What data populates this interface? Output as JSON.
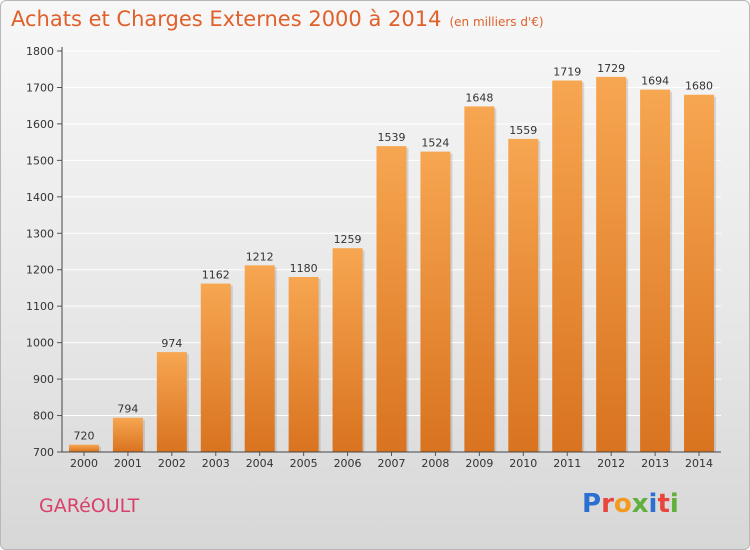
{
  "header": {
    "title": "Achats et Charges Externes 2000 à 2014",
    "subtitle": "(en milliers d'€)"
  },
  "footer": {
    "commune": "GARéOULT",
    "logo_letters": [
      "P",
      "r",
      "o",
      "x",
      "i",
      "t",
      "i"
    ],
    "logo_colors": [
      "#2a6fd1",
      "#e8463c",
      "#f29a1f",
      "#5fb03c",
      "#2a6fd1",
      "#e8463c",
      "#5fb03c"
    ]
  },
  "colors": {
    "bar_light": "#f7a651",
    "bar_dark": "#d9731f",
    "accent": "#e0602a"
  },
  "chart_data": {
    "type": "bar",
    "categories": [
      "2000",
      "2001",
      "2002",
      "2003",
      "2004",
      "2005",
      "2006",
      "2007",
      "2008",
      "2009",
      "2010",
      "2011",
      "2012",
      "2013",
      "2014"
    ],
    "values": [
      720,
      794,
      974,
      1162,
      1212,
      1180,
      1259,
      1539,
      1524,
      1648,
      1559,
      1719,
      1729,
      1694,
      1680
    ],
    "title": "Achats et Charges Externes 2000 à 2014",
    "ylim": [
      700,
      1800
    ],
    "yticks": [
      700,
      800,
      900,
      1000,
      1100,
      1200,
      1300,
      1400,
      1500,
      1600,
      1700,
      1800
    ],
    "grid": true,
    "legend": "none"
  }
}
